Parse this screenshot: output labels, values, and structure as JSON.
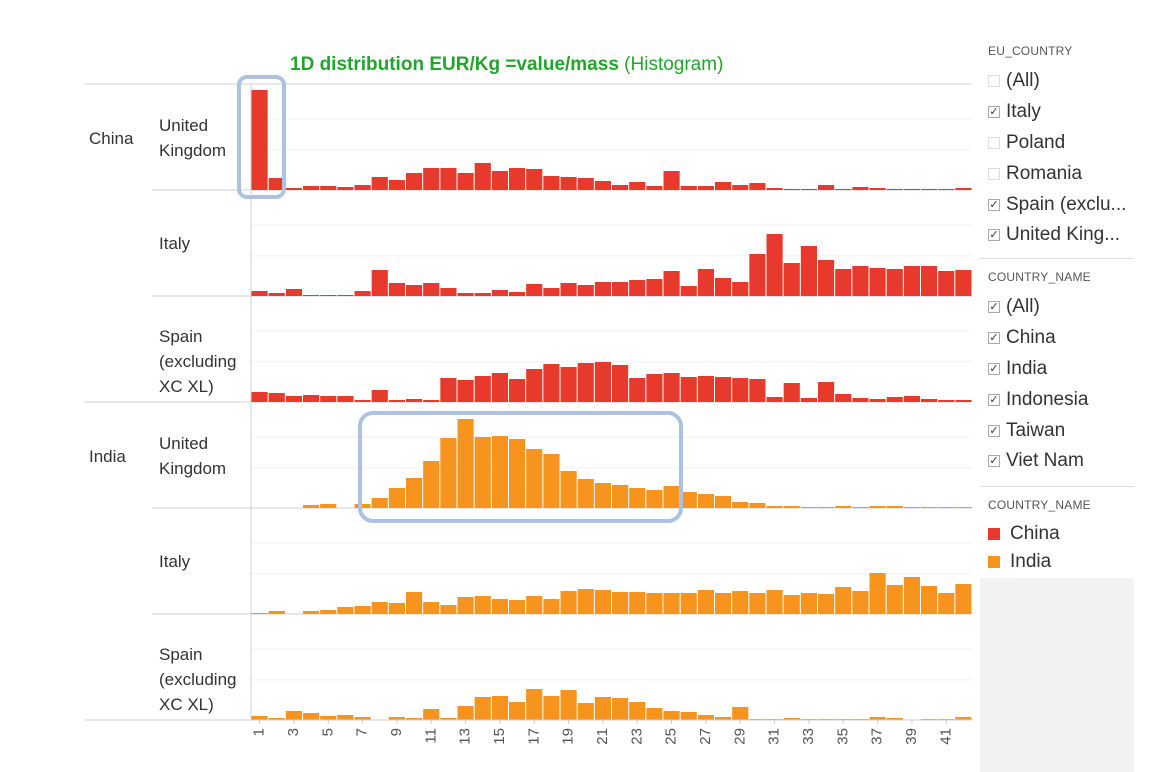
{
  "chart_data": {
    "type": "bar",
    "title_bold": "1D distribution EUR/Kg =value/mass",
    "title_rest": "(Histogram)",
    "x_ticks": [
      "1",
      "3",
      "5",
      "7",
      "9",
      "11",
      "13",
      "15",
      "17",
      "19",
      "21",
      "23",
      "25",
      "27",
      "29",
      "31",
      "33",
      "35",
      "37",
      "39",
      "41"
    ],
    "ylim": [
      0,
      1
    ],
    "rows": [
      {
        "color": "China",
        "country": "China",
        "eu": [
          "United",
          "Kingdom"
        ],
        "label_valign": "top",
        "values": [
          1.0,
          0.12,
          0.02,
          0.04,
          0.04,
          0.03,
          0.05,
          0.13,
          0.1,
          0.17,
          0.22,
          0.22,
          0.17,
          0.27,
          0.19,
          0.22,
          0.21,
          0.14,
          0.13,
          0.12,
          0.09,
          0.05,
          0.08,
          0.04,
          0.19,
          0.04,
          0.04,
          0.08,
          0.05,
          0.07,
          0.02,
          0.01,
          0.01,
          0.05,
          0.01,
          0.03,
          0.02,
          0.01,
          0.01,
          0.01,
          0.01,
          0.02
        ]
      },
      {
        "color": "China",
        "country": "",
        "eu": [
          "Italy"
        ],
        "label_valign": "mid",
        "values": [
          0.05,
          0.03,
          0.07,
          0.01,
          0.01,
          0.01,
          0.05,
          0.26,
          0.13,
          0.11,
          0.13,
          0.08,
          0.03,
          0.03,
          0.06,
          0.04,
          0.12,
          0.08,
          0.13,
          0.11,
          0.14,
          0.14,
          0.16,
          0.17,
          0.25,
          0.1,
          0.27,
          0.18,
          0.14,
          0.42,
          0.62,
          0.33,
          0.5,
          0.36,
          0.27,
          0.3,
          0.28,
          0.27,
          0.3,
          0.3,
          0.25,
          0.26
        ]
      },
      {
        "color": "China",
        "country": "",
        "eu": [
          "Spain",
          "(excluding",
          "XC XL)"
        ],
        "label_valign": "top",
        "values": [
          0.1,
          0.09,
          0.06,
          0.07,
          0.06,
          0.06,
          0.02,
          0.12,
          0.02,
          0.03,
          0.02,
          0.24,
          0.22,
          0.26,
          0.29,
          0.23,
          0.33,
          0.38,
          0.35,
          0.39,
          0.4,
          0.37,
          0.24,
          0.28,
          0.29,
          0.25,
          0.26,
          0.25,
          0.24,
          0.23,
          0.05,
          0.19,
          0.04,
          0.2,
          0.08,
          0.04,
          0.03,
          0.05,
          0.06,
          0.03,
          0.02,
          0.02
        ]
      },
      {
        "color": "India",
        "country": "India",
        "eu": [
          "United",
          "Kingdom"
        ],
        "label_valign": "top",
        "values": [
          0,
          0,
          0,
          0.03,
          0.04,
          0,
          0.04,
          0.1,
          0.2,
          0.3,
          0.47,
          0.7,
          0.89,
          0.71,
          0.72,
          0.69,
          0.59,
          0.54,
          0.37,
          0.29,
          0.25,
          0.23,
          0.2,
          0.18,
          0.22,
          0.16,
          0.14,
          0.12,
          0.06,
          0.05,
          0.02,
          0.02,
          0.01,
          0.01,
          0.02,
          0.01,
          0.02,
          0.02,
          0.01,
          0.01,
          0.01,
          0.01
        ]
      },
      {
        "color": "India",
        "country": "",
        "eu": [
          "Italy"
        ],
        "label_valign": "mid",
        "values": [
          0.01,
          0.03,
          0,
          0.03,
          0.04,
          0.07,
          0.08,
          0.12,
          0.11,
          0.22,
          0.12,
          0.09,
          0.17,
          0.18,
          0.15,
          0.14,
          0.18,
          0.15,
          0.23,
          0.25,
          0.24,
          0.22,
          0.22,
          0.21,
          0.21,
          0.21,
          0.24,
          0.21,
          0.23,
          0.21,
          0.24,
          0.19,
          0.21,
          0.2,
          0.27,
          0.23,
          0.41,
          0.29,
          0.37,
          0.28,
          0.21,
          0.3
        ]
      },
      {
        "color": "India",
        "country": "",
        "eu": [
          "Spain",
          "(excluding",
          "XC XL)"
        ],
        "label_valign": "top",
        "values": [
          0.04,
          0.02,
          0.09,
          0.07,
          0.04,
          0.05,
          0.03,
          0,
          0.03,
          0.02,
          0.11,
          0.02,
          0.14,
          0.23,
          0.24,
          0.18,
          0.31,
          0.24,
          0.3,
          0.17,
          0.23,
          0.22,
          0.18,
          0.12,
          0.09,
          0.08,
          0.05,
          0.03,
          0.13,
          0.01,
          0.01,
          0.02,
          0.01,
          0.01,
          0.01,
          0.01,
          0.03,
          0.02,
          0,
          0.01,
          0.01,
          0.03
        ]
      }
    ]
  },
  "colors": {
    "China": "#e8392d",
    "India": "#f7941e",
    "title_green": "#22a52b",
    "highlight": "#adc2e0"
  },
  "filters": {
    "eu_country": {
      "title": "EU_COUNTRY",
      "items": [
        {
          "label": "(All)",
          "checked": false
        },
        {
          "label": "Italy",
          "checked": true
        },
        {
          "label": "Poland",
          "checked": false
        },
        {
          "label": "Romania",
          "checked": false
        },
        {
          "label": "Spain (exclu...",
          "checked": true
        },
        {
          "label": "United King...",
          "checked": true
        }
      ]
    },
    "country_name": {
      "title": "COUNTRY_NAME",
      "items": [
        {
          "label": "(All)",
          "checked": true
        },
        {
          "label": "China",
          "checked": true
        },
        {
          "label": "India",
          "checked": true
        },
        {
          "label": "Indonesia",
          "checked": true
        },
        {
          "label": "Taiwan",
          "checked": true
        },
        {
          "label": "Viet Nam",
          "checked": true
        }
      ]
    }
  },
  "legend": {
    "title": "COUNTRY_NAME",
    "items": [
      {
        "label": "China",
        "color": "#e8392d"
      },
      {
        "label": "India",
        "color": "#f7941e"
      }
    ]
  }
}
